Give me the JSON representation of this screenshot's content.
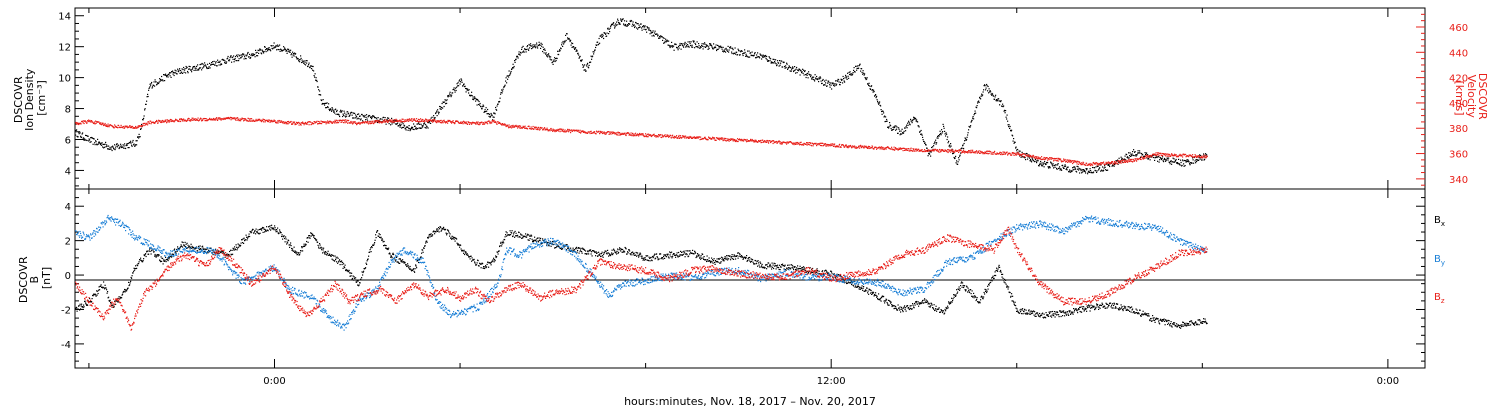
{
  "chart_data": [
    {
      "type": "scatter",
      "panel": "upper",
      "ylabel_left": [
        "DSCOVR",
        "Ion Density",
        "[cm⁻³]"
      ],
      "ylabel_right": [
        "DSCOVR",
        "Velocity",
        "[km/s]"
      ],
      "ylim_left": [
        2.8,
        14.5
      ],
      "ylim_right": [
        332,
        475
      ],
      "yticks_left": [
        "14",
        "12",
        "10",
        "8",
        "6",
        "4"
      ],
      "yticks_left_values": [
        14,
        12,
        10,
        8,
        6,
        4
      ],
      "yticks_right": [
        "460",
        "440",
        "420",
        "400",
        "380",
        "360",
        "340"
      ],
      "yticks_right_values": [
        460,
        440,
        420,
        400,
        380,
        360,
        340
      ],
      "series": [
        {
          "color": "#000000",
          "axis": "left",
          "x_hours": [
            -4.3,
            -4,
            -3.5,
            -3,
            -2.9,
            -2.7,
            -2.3,
            -2,
            -1.5,
            -1,
            -0.5,
            0,
            0.4,
            0.8,
            1,
            1.3,
            1.8,
            2.5,
            2.9,
            3.3,
            3.6,
            4,
            4.2,
            4.5,
            4.7,
            5,
            5.3,
            5.7,
            6,
            6.3,
            6.7,
            7,
            7.4,
            7.7,
            8,
            8.3,
            8.6,
            9,
            9.5,
            10,
            10.5,
            11,
            11.5,
            11.8,
            12,
            12.3,
            12.6,
            13,
            13.2,
            13.5,
            13.8,
            14.1,
            14.4,
            14.7,
            15,
            15.3,
            15.7,
            16,
            16.5,
            17,
            17.5,
            18,
            18.5,
            19,
            19.6,
            20.1
          ],
          "y": [
            6.5,
            6,
            5.5,
            5.8,
            6.5,
            9.5,
            10.2,
            10.5,
            10.8,
            11.2,
            11.5,
            12.1,
            11.5,
            10.8,
            8.5,
            7.8,
            7.5,
            7.2,
            6.8,
            7,
            8.2,
            9.8,
            9,
            8,
            7.5,
            10,
            11.8,
            12.2,
            11,
            12.8,
            10.5,
            12.5,
            13.7,
            13.5,
            13.2,
            12.6,
            12,
            12.2,
            12,
            11.7,
            11.4,
            10.8,
            10.2,
            9.8,
            9.5,
            10,
            10.8,
            8.5,
            7,
            6.5,
            7.5,
            5,
            6.8,
            4.5,
            7,
            9.5,
            8.2,
            5.2,
            4.5,
            4.2,
            4,
            4.3,
            5.2,
            4.8,
            4.5,
            5
          ],
          "noise": 0.22
        },
        {
          "color": "#e8201a",
          "axis": "right",
          "x_hours": [
            -4.3,
            -4,
            -3.5,
            -3,
            -2.7,
            -2,
            -1,
            -0.5,
            0,
            0.5,
            1,
            1.5,
            1.8,
            2.3,
            3,
            3.5,
            4,
            4.5,
            4.7,
            5,
            5.5,
            6,
            7,
            8,
            9,
            10,
            11,
            12,
            13,
            14,
            15,
            15.5,
            16,
            16.5,
            17,
            17.5,
            18,
            18.5,
            19,
            19.5,
            20.1
          ],
          "y": [
            384,
            386,
            382,
            381,
            385,
            387,
            388,
            387,
            386,
            384,
            385,
            386,
            384,
            386,
            387,
            386,
            385,
            384,
            386,
            382,
            381,
            379,
            377,
            375,
            373,
            371,
            369,
            367,
            365,
            363,
            362,
            361,
            360,
            357,
            355,
            352,
            353,
            355,
            360,
            359,
            358
          ],
          "noise": 1.2
        }
      ]
    },
    {
      "type": "scatter",
      "panel": "lower",
      "ylabel_left": [
        "DSCOVR",
        "B",
        "[nT]"
      ],
      "ylim": [
        -5.4,
        5.0
      ],
      "yticks": [
        "4",
        "2",
        "0",
        "-2",
        "-4"
      ],
      "yticks_values": [
        4,
        2,
        0,
        -2,
        -4
      ],
      "legend_entries": [
        {
          "base": "B",
          "sub": "x",
          "color": "#000000"
        },
        {
          "base": "B",
          "sub": "y",
          "color": "#1a7fd6"
        },
        {
          "base": "B",
          "sub": "z",
          "color": "#e8201a"
        }
      ],
      "series": [
        {
          "name": "Bx",
          "color": "#000000",
          "x_hours": [
            -4.3,
            -4,
            -3.7,
            -3.5,
            -3.2,
            -3,
            -2.7,
            -2.4,
            -2,
            -1.5,
            -1,
            -0.5,
            0,
            0.5,
            0.8,
            1,
            1.4,
            1.8,
            2.2,
            2.5,
            3,
            3.3,
            3.6,
            3.9,
            4.2,
            4.5,
            4.7,
            5,
            5.5,
            6,
            6.5,
            7,
            7.5,
            8,
            8.5,
            9,
            9.5,
            10,
            10.5,
            11,
            11.5,
            12,
            12.5,
            13,
            13.5,
            14,
            14.4,
            14.8,
            15.2,
            15.6,
            16,
            16.5,
            17,
            17.5,
            18,
            18.5,
            19,
            19.5,
            20.1
          ],
          "y": [
            -2,
            -1.5,
            -0.5,
            -1.8,
            -0.8,
            0.5,
            1.5,
            0.8,
            1.8,
            1.5,
            1.2,
            2.5,
            2.8,
            1.2,
            2.5,
            1.5,
            0.8,
            -0.5,
            2.5,
            1.2,
            0.3,
            2.2,
            2.8,
            2,
            1,
            0.5,
            0.8,
            2.5,
            2.2,
            1.8,
            1.5,
            1.2,
            1.5,
            1,
            1.2,
            1.3,
            0.8,
            1.2,
            0.6,
            0.5,
            0.3,
            0.1,
            -0.5,
            -1.2,
            -2,
            -1.5,
            -2.2,
            -0.5,
            -1.5,
            0.5,
            -2,
            -2.3,
            -2.2,
            -1.9,
            -1.7,
            -2,
            -2.6,
            -2.9,
            -2.6
          ],
          "noise": 0.18
        },
        {
          "name": "By",
          "color": "#1a7fd6",
          "x_hours": [
            -4.3,
            -4,
            -3.6,
            -3.3,
            -3,
            -2.7,
            -2.3,
            -2,
            -1.7,
            -1.3,
            -1,
            -0.7,
            -0.3,
            0,
            0.3,
            0.8,
            1.2,
            1.5,
            1.8,
            2.2,
            2.5,
            2.8,
            3.2,
            3.5,
            3.8,
            4.1,
            4.4,
            4.8,
            5,
            5.3,
            5.6,
            6,
            6.4,
            6.8,
            7.2,
            7.5,
            8,
            8.5,
            9,
            9.5,
            10,
            10.5,
            11,
            11.5,
            12,
            12.5,
            13,
            13.5,
            14,
            14.5,
            15,
            15.5,
            16,
            16.5,
            17,
            17.5,
            18,
            18.5,
            19,
            19.5,
            20.1
          ],
          "y": [
            2.5,
            2.2,
            3.3,
            3,
            2.2,
            1.8,
            1.2,
            1.5,
            1.5,
            1.4,
            0.5,
            -0.4,
            0.1,
            0.5,
            -0.8,
            -1.3,
            -2.5,
            -3,
            -1.5,
            -0.8,
            0.8,
            1.5,
            0.8,
            -1.5,
            -2.3,
            -2.1,
            -1.8,
            -0.5,
            1.5,
            1.2,
            1.8,
            2,
            1.4,
            0.2,
            -1.2,
            -0.5,
            -0.3,
            0,
            -0.1,
            0.2,
            0.3,
            -0.2,
            0.2,
            -0.1,
            -0.1,
            -0.3,
            -0.4,
            -1,
            -0.8,
            0.8,
            1,
            2,
            2.8,
            3,
            2.6,
            3.3,
            3.1,
            2.9,
            2.8,
            2,
            1.4
          ],
          "noise": 0.2
        },
        {
          "name": "Bz",
          "color": "#e8201a",
          "x_hours": [
            -4.3,
            -4,
            -3.7,
            -3.4,
            -3.1,
            -2.8,
            -2.5,
            -2.2,
            -1.9,
            -1.5,
            -1.2,
            -0.8,
            -0.5,
            0,
            0.4,
            0.7,
            1,
            1.3,
            1.6,
            2,
            2.3,
            2.6,
            3,
            3.3,
            3.7,
            4,
            4.3,
            4.6,
            5,
            5.3,
            5.7,
            6,
            6.5,
            7,
            7.5,
            8,
            8.5,
            9,
            9.5,
            10,
            10.5,
            11,
            11.5,
            12,
            12.5,
            13,
            13.5,
            14,
            14.5,
            15,
            15.5,
            15.8,
            16,
            16.5,
            17,
            17.5,
            18,
            18.5,
            19,
            19.5,
            20.1
          ],
          "y": [
            -0.5,
            -1.5,
            -2.5,
            -1.2,
            -3,
            -1,
            -0.3,
            0.8,
            1.2,
            0.5,
            1.6,
            0.5,
            -0.5,
            0.5,
            -1.5,
            -2.3,
            -1.5,
            -0.5,
            -1.5,
            -1,
            -0.8,
            -1.5,
            -0.5,
            -1.2,
            -0.8,
            -1.3,
            -0.8,
            -1.5,
            -0.8,
            -0.5,
            -1.3,
            -1,
            -0.8,
            0.8,
            0.5,
            0.3,
            -0.2,
            0.3,
            0.4,
            0.1,
            0,
            -0.1,
            0.3,
            -0.2,
            0.1,
            0.3,
            1.2,
            1.5,
            2.2,
            1.8,
            1.5,
            2.7,
            1.5,
            -0.5,
            -1.5,
            -1.5,
            -1,
            -0.2,
            0.5,
            1.3,
            1.5
          ],
          "noise": 0.2
        }
      ]
    }
  ],
  "x_axis": {
    "hours_start": -4.3,
    "hours_end": 24.8,
    "major_ticks": [
      {
        "hour": 0,
        "label": "0:00"
      },
      {
        "hour": 12,
        "label": "12:00"
      },
      {
        "hour": 24,
        "label": "0:00"
      }
    ],
    "minor_tick_step_hours": 4
  },
  "xlabel": "hours:minutes, Nov. 18, 2017 – Nov. 20, 2017"
}
